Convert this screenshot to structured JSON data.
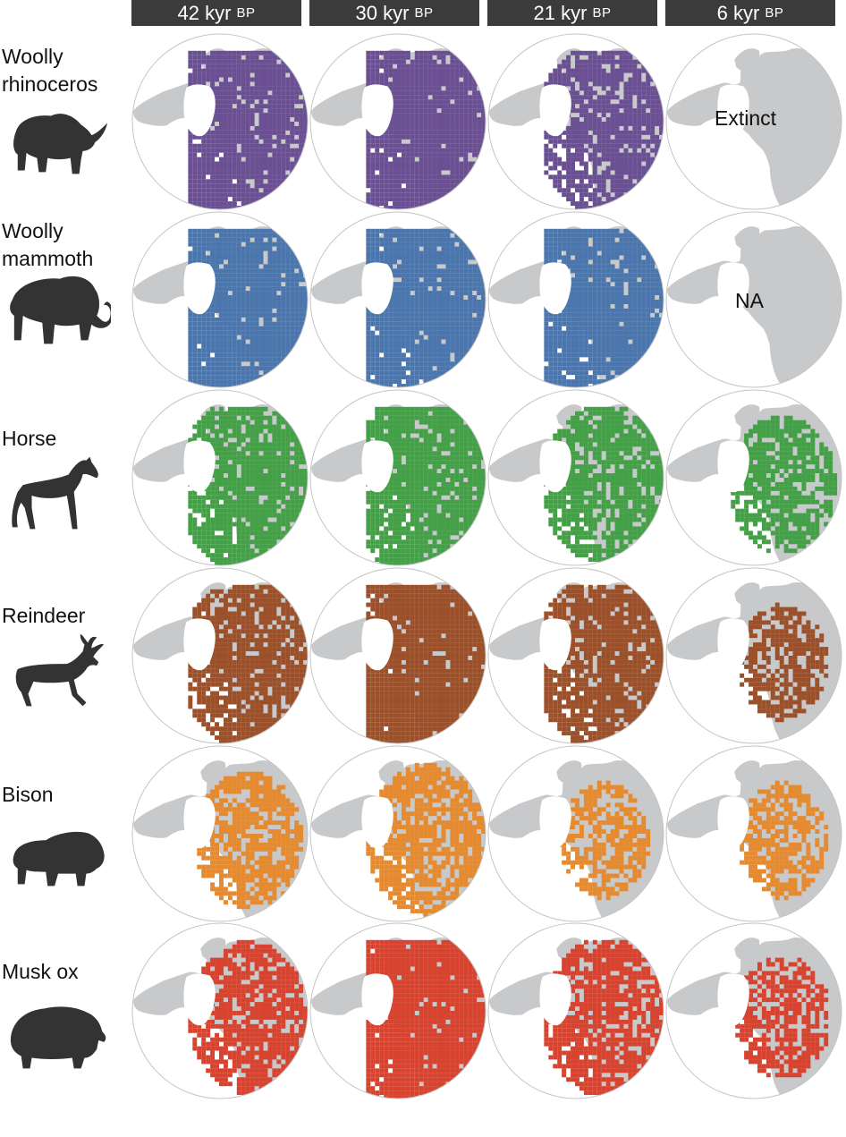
{
  "time_slices": [
    {
      "age": "42 kyr",
      "unit": "BP"
    },
    {
      "age": "30 kyr",
      "unit": "BP"
    },
    {
      "age": "21 kyr",
      "unit": "BP"
    },
    {
      "age": "6 kyr",
      "unit": "BP"
    }
  ],
  "land_color": "#c8c9cb",
  "species": [
    {
      "label_lines": [
        "Woolly",
        "rhinoceros"
      ],
      "icon": "rhinoceros-icon",
      "color": "#6a4f93",
      "maps": [
        {
          "range": 0.95,
          "note": ""
        },
        {
          "range": 1.0,
          "note": ""
        },
        {
          "range": 0.7,
          "note": ""
        },
        {
          "range": 0,
          "note": "Extinct"
        }
      ]
    },
    {
      "label_lines": [
        "Woolly",
        "mammoth"
      ],
      "icon": "mammoth-icon",
      "color": "#4a76ad",
      "maps": [
        {
          "range": 1.0,
          "note": ""
        },
        {
          "range": 1.0,
          "note": ""
        },
        {
          "range": 0.95,
          "note": ""
        },
        {
          "range": 0,
          "note": "NA"
        }
      ]
    },
    {
      "label_lines": [
        "Horse"
      ],
      "icon": "horse-icon",
      "color": "#44a047",
      "maps": [
        {
          "range": 0.75,
          "note": ""
        },
        {
          "range": 0.85,
          "note": ""
        },
        {
          "range": 0.6,
          "note": ""
        },
        {
          "range": 0.45,
          "note": ""
        }
      ]
    },
    {
      "label_lines": [
        "Reindeer"
      ],
      "icon": "reindeer-icon",
      "color": "#9c5029",
      "maps": [
        {
          "range": 0.7,
          "note": ""
        },
        {
          "range": 1.0,
          "note": ""
        },
        {
          "range": 0.75,
          "note": ""
        },
        {
          "range": 0.3,
          "note": ""
        }
      ]
    },
    {
      "label_lines": [
        "Bison"
      ],
      "icon": "bison-icon",
      "color": "#e58a2e",
      "maps": [
        {
          "range": 0.45,
          "note": ""
        },
        {
          "range": 0.55,
          "note": ""
        },
        {
          "range": 0.3,
          "note": ""
        },
        {
          "range": 0.3,
          "note": ""
        }
      ]
    },
    {
      "label_lines": [
        "Musk ox"
      ],
      "icon": "musk-ox-icon",
      "color": "#d7432e",
      "maps": [
        {
          "range": 0.55,
          "note": ""
        },
        {
          "range": 1.0,
          "note": ""
        },
        {
          "range": 0.6,
          "note": ""
        },
        {
          "range": 0.35,
          "note": ""
        }
      ]
    }
  ]
}
